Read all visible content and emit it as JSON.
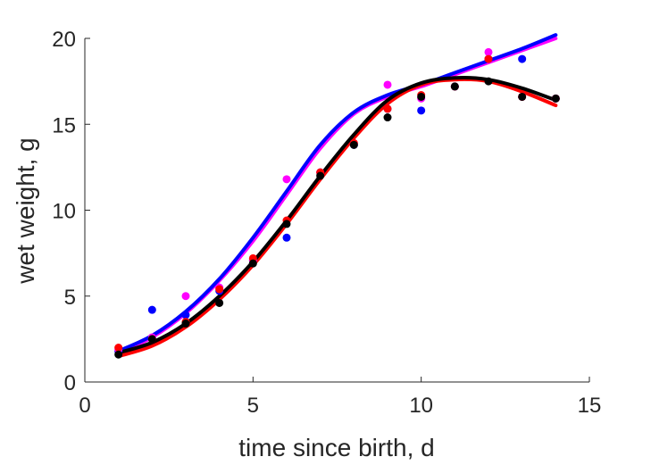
{
  "chart_data": {
    "type": "scatter",
    "title": "",
    "xlabel": "time since birth, d",
    "ylabel": "wet weight, g",
    "xlim": [
      0,
      15
    ],
    "ylim": [
      0,
      20
    ],
    "xticks": [
      "0",
      "5",
      "10",
      "15"
    ],
    "yticks": [
      "0",
      "5",
      "10",
      "15",
      "20"
    ],
    "grid": false,
    "legend": "none",
    "series": [
      {
        "kind": "points",
        "color": "#0000ff",
        "x": [
          1,
          2,
          3,
          4,
          5,
          6,
          7,
          8,
          9,
          10,
          11,
          12,
          13,
          14
        ],
        "y": [
          1.8,
          4.2,
          3.9,
          5.3,
          7.1,
          8.4,
          12.2,
          13.8,
          15.9,
          15.8,
          17.2,
          18.8,
          18.8,
          16.5
        ]
      },
      {
        "kind": "points",
        "color": "#ff00ff",
        "x": [
          1,
          2,
          3,
          4,
          5,
          6,
          7,
          8,
          9,
          10,
          11,
          12,
          13,
          14
        ],
        "y": [
          1.9,
          2.6,
          5.0,
          5.5,
          7.1,
          11.8,
          12.2,
          13.9,
          17.3,
          16.5,
          17.2,
          19.2,
          16.6,
          16.5
        ]
      },
      {
        "kind": "points",
        "color": "#ff0000",
        "x": [
          1,
          2,
          3,
          4,
          5,
          6,
          7,
          8,
          9,
          10,
          11,
          12,
          13,
          14
        ],
        "y": [
          2.0,
          2.5,
          3.5,
          5.4,
          7.2,
          9.4,
          12.2,
          13.9,
          15.9,
          16.7,
          17.2,
          18.8,
          16.6,
          16.5
        ]
      },
      {
        "kind": "points",
        "color": "#000000",
        "x": [
          1,
          2,
          3,
          4,
          5,
          6,
          7,
          8,
          9,
          10,
          11,
          12,
          13,
          14
        ],
        "y": [
          1.6,
          2.5,
          3.4,
          4.6,
          6.9,
          9.2,
          12.0,
          13.8,
          15.4,
          16.6,
          17.2,
          17.5,
          16.6,
          16.5
        ]
      },
      {
        "kind": "line",
        "color": "#ff00ff",
        "x": [
          1,
          2,
          3,
          4,
          5,
          6,
          7,
          8,
          9,
          10,
          11,
          12,
          13,
          14
        ],
        "y": [
          1.7,
          2.6,
          4.0,
          5.9,
          8.2,
          10.9,
          13.6,
          15.6,
          16.6,
          17.2,
          17.9,
          18.6,
          19.3,
          20.0
        ]
      },
      {
        "kind": "line",
        "color": "#0000ff",
        "x": [
          1,
          2,
          3,
          4,
          5,
          6,
          7,
          8,
          9,
          10,
          11,
          12,
          13,
          14
        ],
        "y": [
          1.8,
          2.7,
          4.1,
          6.0,
          8.4,
          11.1,
          13.8,
          15.7,
          16.7,
          17.3,
          18.0,
          18.7,
          19.4,
          20.2
        ]
      },
      {
        "kind": "line",
        "color": "#ff0000",
        "x": [
          1,
          2,
          3,
          4,
          5,
          6,
          7,
          8,
          9,
          10,
          11,
          12,
          13,
          14
        ],
        "y": [
          1.5,
          2.1,
          3.2,
          4.8,
          6.8,
          9.2,
          11.8,
          14.2,
          16.2,
          17.3,
          17.6,
          17.5,
          16.9,
          16.1
        ]
      },
      {
        "kind": "line",
        "color": "#000000",
        "x": [
          1,
          2,
          3,
          4,
          5,
          6,
          7,
          8,
          9,
          10,
          11,
          12,
          13,
          14
        ],
        "y": [
          1.7,
          2.3,
          3.4,
          5.0,
          7.0,
          9.4,
          12.0,
          14.4,
          16.4,
          17.4,
          17.7,
          17.6,
          17.1,
          16.4
        ]
      }
    ]
  }
}
